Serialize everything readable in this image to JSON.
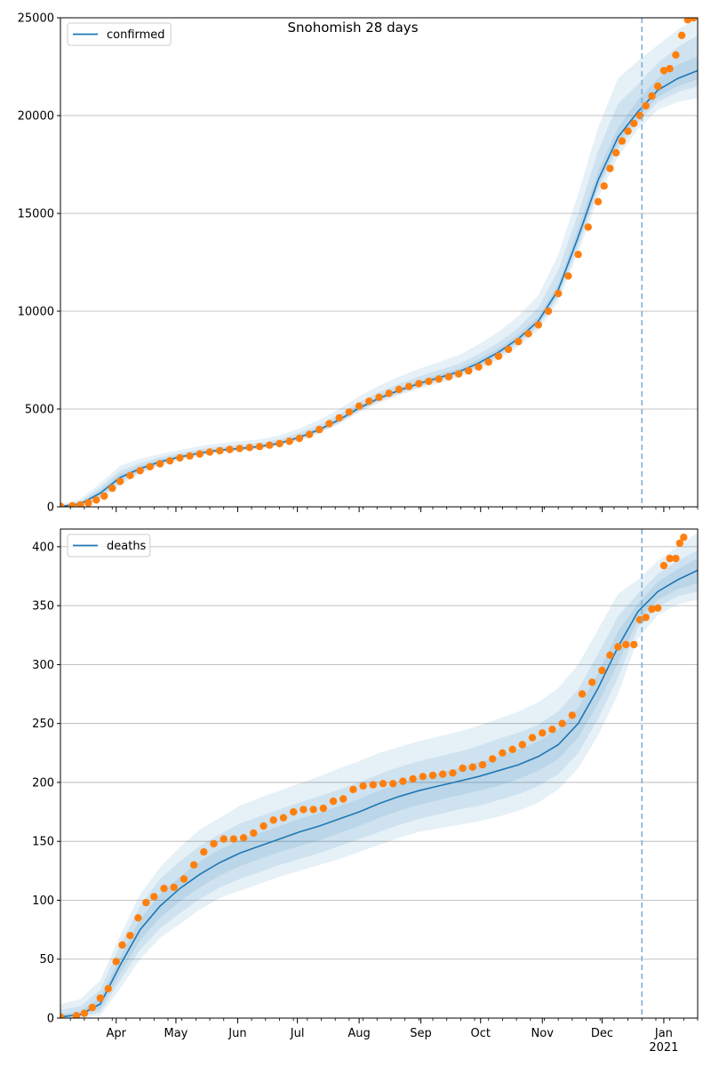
{
  "title": "Snohomish 28 days",
  "colors": {
    "model_line": "#1f77b4",
    "observed": "#ff7f0e",
    "band": "#1f77b4",
    "grid": "#b0b0b0",
    "forecast_line": "#7fb0d6"
  },
  "chart_data": [
    {
      "type": "line",
      "id": "confirmed",
      "legend": "confirmed",
      "legend_position": "top-left",
      "grid": "horizontal",
      "ylim": [
        0,
        25000
      ],
      "yticks": [
        0,
        5000,
        10000,
        15000,
        20000,
        25000
      ],
      "ytick_labels": [
        "0",
        "5000",
        "10000",
        "15000",
        "20000",
        "25000"
      ],
      "xlim": [
        "2020-03-04",
        "2021-01-18"
      ],
      "forecast_start": "2020-12-21",
      "model": {
        "x": [
          "2020-03-04",
          "2020-03-14",
          "2020-03-24",
          "2020-04-03",
          "2020-04-13",
          "2020-04-23",
          "2020-05-03",
          "2020-05-13",
          "2020-05-23",
          "2020-06-02",
          "2020-06-12",
          "2020-06-22",
          "2020-07-02",
          "2020-07-12",
          "2020-07-22",
          "2020-08-01",
          "2020-08-11",
          "2020-08-21",
          "2020-08-31",
          "2020-09-10",
          "2020-09-20",
          "2020-09-30",
          "2020-10-10",
          "2020-10-20",
          "2020-10-30",
          "2020-11-09",
          "2020-11-19",
          "2020-11-29",
          "2020-12-09",
          "2020-12-19",
          "2020-12-29",
          "2021-01-08",
          "2021-01-18"
        ],
        "y": [
          20,
          150,
          700,
          1500,
          1950,
          2300,
          2550,
          2750,
          2900,
          2980,
          3080,
          3250,
          3550,
          3950,
          4450,
          5050,
          5550,
          5950,
          6300,
          6600,
          6900,
          7350,
          7900,
          8600,
          9500,
          11100,
          13800,
          16700,
          18900,
          20200,
          21300,
          21900,
          22300
        ],
        "bands": [
          {
            "lower": [
              0,
              40,
              350,
              1100,
              1700,
              2100,
              2400,
              2600,
              2760,
              2850,
              2950,
              3100,
              3380,
              3750,
              4230,
              4820,
              5300,
              5700,
              6030,
              6310,
              6590,
              7010,
              7520,
              8180,
              9040,
              10500,
              13000,
              15800,
              17900,
              19300,
              20300,
              20700,
              20900
            ],
            "upper": [
              120,
              400,
              1200,
              2100,
              2450,
              2700,
              2900,
              3100,
              3250,
              3350,
              3450,
              3650,
              4000,
              4450,
              5000,
              5650,
              6200,
              6650,
              7050,
              7400,
              7750,
              8300,
              8950,
              9750,
              10800,
              12900,
              16000,
              19400,
              21900,
              22800,
              23600,
              24400,
              25000
            ]
          },
          {
            "lower": [
              5,
              80,
              460,
              1250,
              1780,
              2160,
              2450,
              2650,
              2800,
              2890,
              2990,
              3150,
              3430,
              3810,
              4300,
              4900,
              5390,
              5790,
              6130,
              6420,
              6710,
              7140,
              7670,
              8350,
              9220,
              10750,
              13300,
              16200,
              18300,
              19650,
              20700,
              21200,
              21500
            ],
            "upper": [
              70,
              280,
              1000,
              1850,
              2230,
              2530,
              2750,
              2940,
              3080,
              3170,
              3270,
              3460,
              3790,
              4210,
              4730,
              5350,
              5870,
              6280,
              6660,
              6980,
              7300,
              7810,
              8400,
              9150,
              10200,
              12100,
              15000,
              18200,
              20600,
              21600,
              22700,
              23500,
              24100
            ]
          },
          {
            "lower": [
              10,
              110,
              560,
              1350,
              1840,
              2200,
              2480,
              2680,
              2830,
              2920,
              3020,
              3180,
              3470,
              3860,
              4350,
              4960,
              5450,
              5850,
              6190,
              6490,
              6790,
              7220,
              7760,
              8450,
              9330,
              10900,
              13520,
              16420,
              18590,
              19900,
              20950,
              21520,
              21850
            ],
            "upper": [
              40,
              210,
              870,
              1680,
              2090,
              2430,
              2650,
              2840,
              2980,
              3060,
              3160,
              3340,
              3660,
              4060,
              4570,
              5170,
              5680,
              6090,
              6450,
              6760,
              7070,
              7530,
              8100,
              8810,
              9740,
              11380,
              14250,
              17180,
              19380,
              20800,
              21900,
              22600,
              23000
            ]
          }
        ]
      },
      "observed": {
        "x": [
          "2020-03-04",
          "2020-03-10",
          "2020-03-14",
          "2020-03-18",
          "2020-03-22",
          "2020-03-26",
          "2020-03-30",
          "2020-04-03",
          "2020-04-08",
          "2020-04-13",
          "2020-04-18",
          "2020-04-23",
          "2020-04-28",
          "2020-05-03",
          "2020-05-08",
          "2020-05-13",
          "2020-05-18",
          "2020-05-23",
          "2020-05-28",
          "2020-06-02",
          "2020-06-07",
          "2020-06-12",
          "2020-06-17",
          "2020-06-22",
          "2020-06-27",
          "2020-07-02",
          "2020-07-07",
          "2020-07-12",
          "2020-07-17",
          "2020-07-22",
          "2020-07-27",
          "2020-08-01",
          "2020-08-06",
          "2020-08-11",
          "2020-08-16",
          "2020-08-21",
          "2020-08-26",
          "2020-08-31",
          "2020-09-05",
          "2020-09-10",
          "2020-09-15",
          "2020-09-20",
          "2020-09-25",
          "2020-09-30",
          "2020-10-05",
          "2020-10-10",
          "2020-10-15",
          "2020-10-20",
          "2020-10-25",
          "2020-10-30",
          "2020-11-04",
          "2020-11-09",
          "2020-11-14",
          "2020-11-19",
          "2020-11-24",
          "2020-11-29",
          "2020-12-02",
          "2020-12-05",
          "2020-12-08",
          "2020-12-11",
          "2020-12-14",
          "2020-12-17",
          "2020-12-20",
          "2020-12-23",
          "2020-12-26",
          "2020-12-29",
          "2021-01-01",
          "2021-01-04",
          "2021-01-07",
          "2021-01-10",
          "2021-01-13",
          "2021-01-16"
        ],
        "y": [
          30,
          50,
          100,
          200,
          350,
          550,
          950,
          1300,
          1600,
          1850,
          2050,
          2200,
          2350,
          2500,
          2600,
          2700,
          2800,
          2870,
          2930,
          2980,
          3030,
          3080,
          3150,
          3230,
          3350,
          3500,
          3700,
          3950,
          4250,
          4550,
          4850,
          5150,
          5400,
          5600,
          5800,
          6000,
          6150,
          6300,
          6420,
          6530,
          6650,
          6800,
          6950,
          7150,
          7400,
          7700,
          8050,
          8450,
          8850,
          9300,
          10000,
          10900,
          11800,
          12900,
          14300,
          15600,
          16400,
          17300,
          18100,
          18700,
          19200,
          19600,
          20000,
          20500,
          21000,
          21500,
          22300,
          22400,
          23100,
          24100,
          24900,
          25000
        ]
      }
    },
    {
      "type": "line",
      "id": "deaths",
      "legend": "deaths",
      "legend_position": "top-left",
      "grid": "horizontal",
      "ylim": [
        0,
        415
      ],
      "yticks": [
        0,
        50,
        100,
        150,
        200,
        250,
        300,
        350,
        400
      ],
      "ytick_labels": [
        "0",
        "50",
        "100",
        "150",
        "200",
        "250",
        "300",
        "350",
        "400"
      ],
      "xlim": [
        "2020-03-04",
        "2021-01-18"
      ],
      "xtick_labels": [
        "Apr",
        "May",
        "Jun",
        "Jul",
        "Aug",
        "Sep",
        "Oct",
        "Nov",
        "Dec",
        "Jan\n2021"
      ],
      "forecast_start": "2020-12-21",
      "model": {
        "x": [
          "2020-03-04",
          "2020-03-14",
          "2020-03-24",
          "2020-04-03",
          "2020-04-13",
          "2020-04-23",
          "2020-05-03",
          "2020-05-13",
          "2020-05-23",
          "2020-06-02",
          "2020-06-12",
          "2020-06-22",
          "2020-07-02",
          "2020-07-12",
          "2020-07-22",
          "2020-08-01",
          "2020-08-11",
          "2020-08-21",
          "2020-08-31",
          "2020-09-10",
          "2020-09-20",
          "2020-09-30",
          "2020-10-10",
          "2020-10-20",
          "2020-10-30",
          "2020-11-09",
          "2020-11-19",
          "2020-11-29",
          "2020-12-09",
          "2020-12-19",
          "2020-12-29",
          "2021-01-08",
          "2021-01-18"
        ],
        "y": [
          1,
          3,
          12,
          45,
          75,
          95,
          110,
          122,
          132,
          140,
          146,
          152,
          158,
          163,
          169,
          175,
          182,
          188,
          193,
          197,
          201,
          205,
          210,
          215,
          222,
          232,
          250,
          280,
          315,
          345,
          362,
          372,
          380
        ],
        "bands": [
          {
            "lower": [
              0,
              0,
              2,
              25,
              50,
              68,
              80,
              92,
              102,
              108,
              114,
              120,
              125,
              130,
              135,
              141,
              147,
              153,
              158,
              161,
              164,
              167,
              171,
              176,
              183,
              194,
              212,
              240,
              275,
              322,
              342,
              351,
              355
            ],
            "upper": [
              12,
              16,
              32,
              70,
              105,
              128,
              145,
              160,
              170,
              180,
              187,
              193,
              199,
              205,
              212,
              218,
              225,
              230,
              235,
              239,
              243,
              248,
              254,
              260,
              268,
              280,
              300,
              330,
              360,
              372,
              388,
              400,
              412
            ]
          },
          {
            "lower": [
              0,
              1,
              5,
              32,
              58,
              76,
              89,
              101,
              111,
              118,
              124,
              130,
              135,
              140,
              146,
              152,
              158,
              164,
              169,
              173,
              177,
              180,
              185,
              190,
              197,
              207,
              225,
              254,
              289,
              331,
              349,
              358,
              362
            ],
            "upper": [
              7,
              10,
              24,
              62,
              95,
              118,
              133,
              146,
              156,
              165,
              171,
              177,
              183,
              188,
              194,
              200,
              207,
              213,
              218,
              222,
              226,
              231,
              237,
              242,
              249,
              260,
              279,
              309,
              341,
              360,
              377,
              388,
              397
            ]
          },
          {
            "lower": [
              0,
              2,
              8,
              38,
              66,
              85,
              99,
              111,
              121,
              129,
              135,
              141,
              146,
              151,
              157,
              163,
              170,
              176,
              181,
              185,
              189,
              193,
              197,
              203,
              210,
              220,
              238,
              267,
              301,
              338,
              355,
              364,
              369
            ],
            "upper": [
              3,
              6,
              17,
              52,
              84,
              105,
              120,
              133,
              143,
              151,
              157,
              163,
              169,
              174,
              180,
              186,
              193,
              199,
              204,
              208,
              212,
              217,
              222,
              228,
              235,
              245,
              263,
              293,
              328,
              352,
              370,
              381,
              390
            ]
          }
        ]
      },
      "observed": {
        "x": [
          "2020-03-04",
          "2020-03-12",
          "2020-03-16",
          "2020-03-20",
          "2020-03-24",
          "2020-03-28",
          "2020-04-01",
          "2020-04-04",
          "2020-04-08",
          "2020-04-12",
          "2020-04-16",
          "2020-04-20",
          "2020-04-25",
          "2020-04-30",
          "2020-05-05",
          "2020-05-10",
          "2020-05-15",
          "2020-05-20",
          "2020-05-25",
          "2020-05-30",
          "2020-06-04",
          "2020-06-09",
          "2020-06-14",
          "2020-06-19",
          "2020-06-24",
          "2020-06-29",
          "2020-07-04",
          "2020-07-09",
          "2020-07-14",
          "2020-07-19",
          "2020-07-24",
          "2020-07-29",
          "2020-08-03",
          "2020-08-08",
          "2020-08-13",
          "2020-08-18",
          "2020-08-23",
          "2020-08-28",
          "2020-09-02",
          "2020-09-07",
          "2020-09-12",
          "2020-09-17",
          "2020-09-22",
          "2020-09-27",
          "2020-10-02",
          "2020-10-07",
          "2020-10-12",
          "2020-10-17",
          "2020-10-22",
          "2020-10-27",
          "2020-11-01",
          "2020-11-06",
          "2020-11-11",
          "2020-11-16",
          "2020-11-21",
          "2020-11-26",
          "2020-12-01",
          "2020-12-05",
          "2020-12-09",
          "2020-12-13",
          "2020-12-17",
          "2020-12-20",
          "2020-12-23",
          "2020-12-26",
          "2020-12-29",
          "2021-01-01",
          "2021-01-04",
          "2021-01-07",
          "2021-01-09",
          "2021-01-11"
        ],
        "y": [
          1,
          2,
          4,
          9,
          17,
          25,
          48,
          62,
          70,
          85,
          98,
          103,
          110,
          111,
          118,
          130,
          141,
          148,
          152,
          152,
          153,
          157,
          163,
          168,
          170,
          175,
          177,
          177,
          178,
          184,
          186,
          194,
          197,
          198,
          199,
          199,
          201,
          203,
          205,
          206,
          207,
          208,
          212,
          213,
          215,
          220,
          225,
          228,
          232,
          238,
          242,
          245,
          250,
          257,
          275,
          285,
          295,
          308,
          315,
          317,
          317,
          338,
          340,
          347,
          348,
          384,
          390,
          390,
          403,
          408
        ]
      }
    }
  ]
}
